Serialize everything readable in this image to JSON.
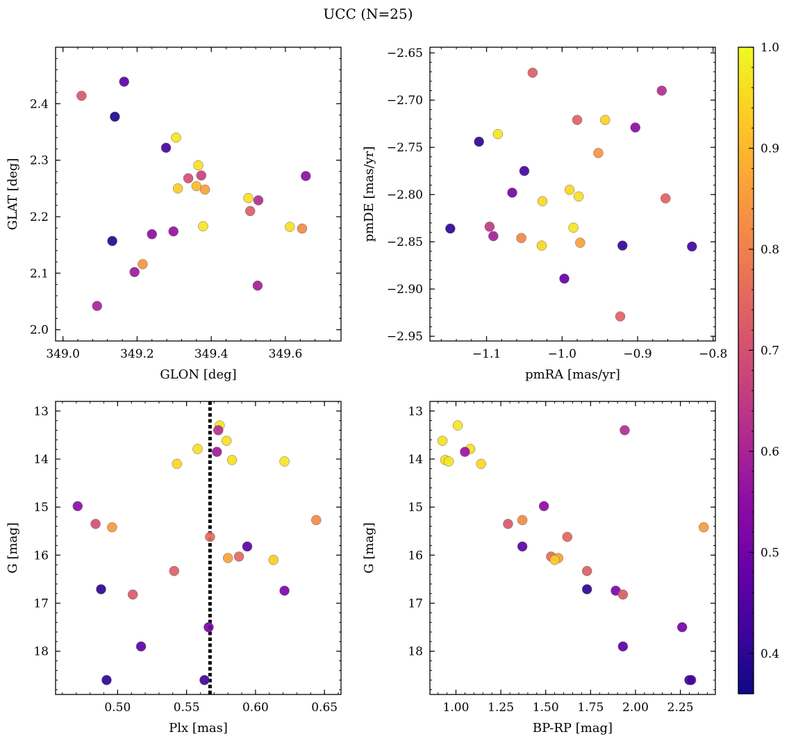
{
  "chart_data": {
    "type": "scatter",
    "title": "UCC (N=25)",
    "colormap": "plasma",
    "colorbar": {
      "range": [
        0.36,
        1.0
      ],
      "ticks": [
        0.4,
        0.5,
        0.6,
        0.7,
        0.8,
        0.9,
        1.0
      ],
      "tick_labels": [
        "0.4",
        "0.5",
        "0.6",
        "0.7",
        "0.8",
        "0.9",
        "1.0"
      ]
    },
    "panels": [
      {
        "id": "glon-glat",
        "xlabel": "GLON [deg]",
        "ylabel": "GLAT [deg]",
        "xlim": [
          348.98,
          349.75
        ],
        "ylim": [
          1.98,
          2.5
        ],
        "xticks": [
          349.0,
          349.2,
          349.4,
          349.6
        ],
        "xtick_labels": [
          "349.0",
          "349.2",
          "349.4",
          "349.6"
        ],
        "yticks": [
          2.0,
          2.1,
          2.2,
          2.3,
          2.4
        ],
        "ytick_labels": [
          "2.0",
          "2.1",
          "2.2",
          "2.3",
          "2.4"
        ],
        "y_inverted": false,
        "points": [
          {
            "x": 349.05,
            "y": 2.414,
            "c": 0.72
          },
          {
            "x": 349.165,
            "y": 2.439,
            "c": 0.47
          },
          {
            "x": 349.14,
            "y": 2.377,
            "c": 0.38
          },
          {
            "x": 349.278,
            "y": 2.322,
            "c": 0.44
          },
          {
            "x": 349.305,
            "y": 2.34,
            "c": 0.97
          },
          {
            "x": 349.365,
            "y": 2.291,
            "c": 0.96
          },
          {
            "x": 349.338,
            "y": 2.268,
            "c": 0.7
          },
          {
            "x": 349.373,
            "y": 2.273,
            "c": 0.67
          },
          {
            "x": 349.31,
            "y": 2.25,
            "c": 0.93
          },
          {
            "x": 349.36,
            "y": 2.254,
            "c": 0.9
          },
          {
            "x": 349.383,
            "y": 2.248,
            "c": 0.86
          },
          {
            "x": 349.5,
            "y": 2.233,
            "c": 0.96
          },
          {
            "x": 349.527,
            "y": 2.229,
            "c": 0.62
          },
          {
            "x": 349.505,
            "y": 2.21,
            "c": 0.73
          },
          {
            "x": 349.655,
            "y": 2.272,
            "c": 0.55
          },
          {
            "x": 349.378,
            "y": 2.183,
            "c": 0.97
          },
          {
            "x": 349.612,
            "y": 2.182,
            "c": 0.96
          },
          {
            "x": 349.645,
            "y": 2.179,
            "c": 0.82
          },
          {
            "x": 349.133,
            "y": 2.157,
            "c": 0.39
          },
          {
            "x": 349.24,
            "y": 2.169,
            "c": 0.55
          },
          {
            "x": 349.298,
            "y": 2.174,
            "c": 0.56
          },
          {
            "x": 349.215,
            "y": 2.116,
            "c": 0.84
          },
          {
            "x": 349.193,
            "y": 2.102,
            "c": 0.58
          },
          {
            "x": 349.525,
            "y": 2.078,
            "c": 0.59
          },
          {
            "x": 349.092,
            "y": 2.042,
            "c": 0.6
          }
        ]
      },
      {
        "id": "pmra-pmde",
        "xlabel": "pmRA [mas/yr]",
        "ylabel": "pmDE [mas/yr]",
        "xlim": [
          -1.175,
          -0.797
        ],
        "ylim": [
          -2.955,
          -2.644
        ],
        "xticks": [
          -1.1,
          -1.0,
          -0.9,
          -0.8
        ],
        "xtick_labels": [
          "−1.1",
          "−1.0",
          "−0.9",
          "−0.8"
        ],
        "yticks": [
          -2.65,
          -2.7,
          -2.75,
          -2.8,
          -2.85,
          -2.9,
          -2.95
        ],
        "ytick_labels": [
          "−2.65",
          "−2.70",
          "−2.75",
          "−2.80",
          "−2.85",
          "−2.90",
          "−2.95"
        ],
        "y_inverted": false,
        "points": [
          {
            "x": -1.039,
            "y": -2.671,
            "c": 0.73
          },
          {
            "x": -0.868,
            "y": -2.69,
            "c": 0.62
          },
          {
            "x": -0.98,
            "y": -2.721,
            "c": 0.74
          },
          {
            "x": -0.943,
            "y": -2.721,
            "c": 0.94
          },
          {
            "x": -0.903,
            "y": -2.729,
            "c": 0.55
          },
          {
            "x": -1.085,
            "y": -2.736,
            "c": 0.97
          },
          {
            "x": -1.11,
            "y": -2.744,
            "c": 0.4
          },
          {
            "x": -0.952,
            "y": -2.756,
            "c": 0.84
          },
          {
            "x": -1.05,
            "y": -2.775,
            "c": 0.43
          },
          {
            "x": -0.99,
            "y": -2.795,
            "c": 0.95
          },
          {
            "x": -1.066,
            "y": -2.798,
            "c": 0.51
          },
          {
            "x": -0.978,
            "y": -2.802,
            "c": 0.96
          },
          {
            "x": -0.863,
            "y": -2.804,
            "c": 0.74
          },
          {
            "x": -1.026,
            "y": -2.807,
            "c": 0.95
          },
          {
            "x": -1.148,
            "y": -2.836,
            "c": 0.4
          },
          {
            "x": -1.096,
            "y": -2.834,
            "c": 0.65
          },
          {
            "x": -0.985,
            "y": -2.835,
            "c": 0.97
          },
          {
            "x": -1.091,
            "y": -2.844,
            "c": 0.59
          },
          {
            "x": -1.054,
            "y": -2.846,
            "c": 0.81
          },
          {
            "x": -0.976,
            "y": -2.851,
            "c": 0.86
          },
          {
            "x": -1.027,
            "y": -2.854,
            "c": 0.95
          },
          {
            "x": -0.92,
            "y": -2.854,
            "c": 0.41
          },
          {
            "x": -0.828,
            "y": -2.855,
            "c": 0.43
          },
          {
            "x": -0.997,
            "y": -2.889,
            "c": 0.48
          },
          {
            "x": -0.923,
            "y": -2.929,
            "c": 0.74
          }
        ]
      },
      {
        "id": "plx-g",
        "xlabel": "Plx [mas]",
        "ylabel": "G [mag]",
        "xlim": [
          0.455,
          0.662
        ],
        "ylim": [
          18.9,
          12.8
        ],
        "xticks": [
          0.5,
          0.55,
          0.6,
          0.65
        ],
        "xtick_labels": [
          "0.50",
          "0.55",
          "0.60",
          "0.65"
        ],
        "yticks": [
          13,
          14,
          15,
          16,
          17,
          18
        ],
        "ytick_labels": [
          "13",
          "14",
          "15",
          "16",
          "17",
          "18"
        ],
        "y_inverted": true,
        "vline": {
          "x": 0.567,
          "style": "dotted",
          "color": "#000000"
        },
        "points": [
          {
            "x": 0.574,
            "y": 13.3,
            "c": 0.97
          },
          {
            "x": 0.573,
            "y": 13.4,
            "c": 0.63
          },
          {
            "x": 0.579,
            "y": 13.62,
            "c": 0.96
          },
          {
            "x": 0.558,
            "y": 13.79,
            "c": 0.96
          },
          {
            "x": 0.572,
            "y": 13.85,
            "c": 0.58
          },
          {
            "x": 0.583,
            "y": 14.02,
            "c": 0.96
          },
          {
            "x": 0.621,
            "y": 14.05,
            "c": 0.97
          },
          {
            "x": 0.543,
            "y": 14.1,
            "c": 0.95
          },
          {
            "x": 0.471,
            "y": 14.98,
            "c": 0.55
          },
          {
            "x": 0.484,
            "y": 15.35,
            "c": 0.7
          },
          {
            "x": 0.496,
            "y": 15.42,
            "c": 0.85
          },
          {
            "x": 0.644,
            "y": 15.27,
            "c": 0.82
          },
          {
            "x": 0.567,
            "y": 15.62,
            "c": 0.76
          },
          {
            "x": 0.594,
            "y": 15.82,
            "c": 0.47
          },
          {
            "x": 0.58,
            "y": 16.06,
            "c": 0.86
          },
          {
            "x": 0.588,
            "y": 16.03,
            "c": 0.75
          },
          {
            "x": 0.613,
            "y": 16.1,
            "c": 0.93
          },
          {
            "x": 0.541,
            "y": 16.33,
            "c": 0.73
          },
          {
            "x": 0.488,
            "y": 16.71,
            "c": 0.4
          },
          {
            "x": 0.621,
            "y": 16.74,
            "c": 0.52
          },
          {
            "x": 0.511,
            "y": 16.82,
            "c": 0.72
          },
          {
            "x": 0.566,
            "y": 17.5,
            "c": 0.51
          },
          {
            "x": 0.517,
            "y": 17.9,
            "c": 0.47
          },
          {
            "x": 0.492,
            "y": 18.6,
            "c": 0.4
          },
          {
            "x": 0.563,
            "y": 18.6,
            "c": 0.43
          }
        ]
      },
      {
        "id": "bprp-g",
        "xlabel": "BP-RP [mag]",
        "ylabel": "G [mag]",
        "xlim": [
          0.855,
          2.445
        ],
        "ylim": [
          18.9,
          12.8
        ],
        "xticks": [
          1.0,
          1.25,
          1.5,
          1.75,
          2.0,
          2.25
        ],
        "xtick_labels": [
          "1.00",
          "1.25",
          "1.50",
          "1.75",
          "2.00",
          "2.25"
        ],
        "yticks": [
          13,
          14,
          15,
          16,
          17,
          18
        ],
        "ytick_labels": [
          "13",
          "14",
          "15",
          "16",
          "17",
          "18"
        ],
        "y_inverted": true,
        "points": [
          {
            "x": 1.01,
            "y": 13.3,
            "c": 0.97
          },
          {
            "x": 1.94,
            "y": 13.4,
            "c": 0.62
          },
          {
            "x": 0.925,
            "y": 13.62,
            "c": 0.96
          },
          {
            "x": 1.08,
            "y": 13.79,
            "c": 0.96
          },
          {
            "x": 1.05,
            "y": 13.85,
            "c": 0.57
          },
          {
            "x": 0.94,
            "y": 14.02,
            "c": 0.96
          },
          {
            "x": 0.96,
            "y": 14.05,
            "c": 0.97
          },
          {
            "x": 1.14,
            "y": 14.1,
            "c": 0.95
          },
          {
            "x": 1.49,
            "y": 14.98,
            "c": 0.55
          },
          {
            "x": 1.37,
            "y": 15.27,
            "c": 0.82
          },
          {
            "x": 1.29,
            "y": 15.35,
            "c": 0.72
          },
          {
            "x": 2.38,
            "y": 15.42,
            "c": 0.85
          },
          {
            "x": 1.62,
            "y": 15.62,
            "c": 0.75
          },
          {
            "x": 1.37,
            "y": 15.82,
            "c": 0.47
          },
          {
            "x": 1.53,
            "y": 16.03,
            "c": 0.76
          },
          {
            "x": 1.57,
            "y": 16.06,
            "c": 0.86
          },
          {
            "x": 1.55,
            "y": 16.1,
            "c": 0.93
          },
          {
            "x": 1.73,
            "y": 16.33,
            "c": 0.73
          },
          {
            "x": 1.73,
            "y": 16.71,
            "c": 0.4
          },
          {
            "x": 1.89,
            "y": 16.74,
            "c": 0.52
          },
          {
            "x": 1.93,
            "y": 16.82,
            "c": 0.72
          },
          {
            "x": 2.26,
            "y": 17.5,
            "c": 0.51
          },
          {
            "x": 1.93,
            "y": 17.9,
            "c": 0.47
          },
          {
            "x": 2.3,
            "y": 18.6,
            "c": 0.4
          },
          {
            "x": 2.31,
            "y": 18.6,
            "c": 0.43
          }
        ]
      }
    ]
  }
}
